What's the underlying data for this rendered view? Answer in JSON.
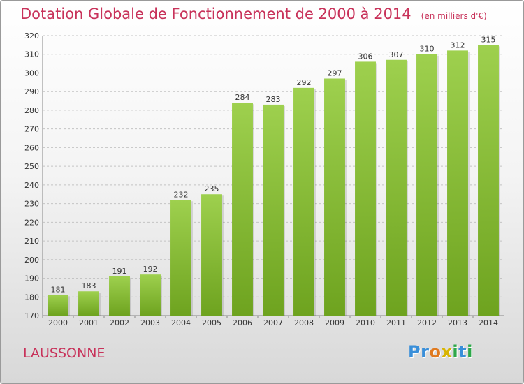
{
  "title": "Dotation Globale de Fonctionnement de 2000 à 2014",
  "unit": "(en milliers d'€)",
  "commune": "LAUSSONNE",
  "logo": {
    "letters": [
      "P",
      "r",
      "o",
      "x",
      "i",
      "t",
      "i"
    ],
    "colors": [
      "#3a8fd9",
      "#3a8fd9",
      "#e07a1f",
      "#d8b400",
      "#2ea84a",
      "#3a8fd9",
      "#2ea84a"
    ]
  },
  "colors": {
    "bar_light": "#9ed04e",
    "bar_dark": "#6ea31f",
    "title": "#c8325a"
  },
  "chart_data": {
    "type": "bar",
    "categories": [
      "2000",
      "2001",
      "2002",
      "2003",
      "2004",
      "2005",
      "2006",
      "2007",
      "2008",
      "2009",
      "2010",
      "2011",
      "2012",
      "2013",
      "2014"
    ],
    "values": [
      181,
      183,
      191,
      192,
      232,
      235,
      284,
      283,
      292,
      297,
      306,
      307,
      310,
      312,
      315
    ],
    "yticks": [
      170,
      180,
      190,
      200,
      210,
      220,
      230,
      240,
      250,
      260,
      270,
      280,
      290,
      300,
      310,
      320
    ],
    "ylim": [
      170,
      320
    ],
    "grid": true,
    "legend": "none"
  }
}
